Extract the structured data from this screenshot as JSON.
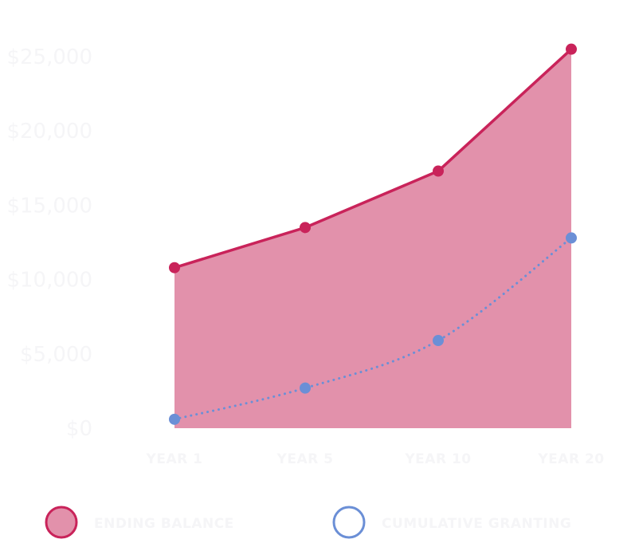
{
  "colors": {
    "balance_line": "#c9235a",
    "balance_fill": "#e291ab",
    "granting_line": "#6b8fd6",
    "tick_text": "#f5f5f7",
    "background": "#ffffff"
  },
  "chart_data": {
    "type": "area",
    "categories": [
      "YEAR 1",
      "YEAR 5",
      "YEAR 10",
      "YEAR 20"
    ],
    "series": [
      {
        "name": "ENDING BALANCE",
        "values": [
          10800,
          13500,
          17300,
          25500
        ],
        "style": "solid-area"
      },
      {
        "name": "CUMULATIVE GRANTING",
        "values": [
          600,
          2700,
          5900,
          12800
        ],
        "style": "dotted-line"
      }
    ],
    "y_ticks": [
      "$0",
      "$5,000",
      "$10,000",
      "$15,000",
      "$20,000",
      "$25,000"
    ],
    "y_tick_values": [
      0,
      5000,
      10000,
      15000,
      20000,
      25000
    ],
    "ylim": [
      0,
      25000
    ],
    "legend": [
      "ENDING BALANCE",
      "CUMULATIVE GRANTING"
    ],
    "legend_position": "bottom",
    "grid": false,
    "title": "",
    "xlabel": "",
    "ylabel": ""
  }
}
